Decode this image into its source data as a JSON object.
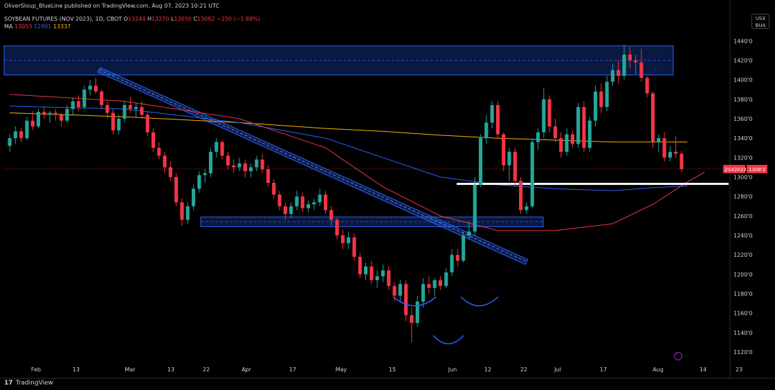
{
  "header": {
    "published": "OliverSloup_BlueLine published on TradingView.com, Aug 07, 2023 10:21 UTC"
  },
  "legend": {
    "symbol": "SOYBEAN FUTURES (NOV 2023), 1D, CBOT",
    "o_label": "O",
    "o_value": "13244",
    "h_label": "H",
    "h_value": "13270",
    "l_label": "L",
    "l_value": "13050",
    "c_label": "C",
    "c_value": "13082",
    "change": "−250 (−1.88%)",
    "ma_label": "MA",
    "ma1": "13053",
    "ma2": "12901",
    "ma3": "13337"
  },
  "badge": {
    "line1": "USX",
    "line2": "BUA"
  },
  "price_tag": {
    "symbol": "ZSX2023",
    "price": "1308'2"
  },
  "footer": {
    "brand": "TradingView",
    "logo": "17"
  },
  "colors": {
    "up": "#26a69a",
    "down": "#f23645",
    "ma_red": "#f23645",
    "ma_blue": "#2962ff",
    "ma_gold": "#ffb300",
    "zone": "#2962ff"
  },
  "chart_data": {
    "type": "candlestick",
    "y_axis_ticks": [
      1440,
      1420,
      1400,
      1380,
      1360,
      1340,
      1320,
      1300,
      1280,
      1260,
      1240,
      1220,
      1200,
      1180,
      1160,
      1140,
      1120
    ],
    "x_axis_labels": [
      "Feb",
      "13",
      "Mar",
      "13",
      "22",
      "Apr",
      "17",
      "May",
      "15",
      "Jun",
      "12",
      "22",
      "Jul",
      "17",
      "Aug",
      "14",
      "23"
    ],
    "ylim": [
      1108,
      1448
    ],
    "last_price": 1308.25,
    "support_line": 1293,
    "zones": [
      {
        "name": "top-zone",
        "low": 1405,
        "high": 1435
      },
      {
        "name": "bottom-zone",
        "low": 1249,
        "high": 1259
      }
    ],
    "candles": [
      {
        "o": 1332,
        "h": 1344,
        "l": 1326,
        "c": 1340
      },
      {
        "o": 1340,
        "h": 1352,
        "l": 1334,
        "c": 1347
      },
      {
        "o": 1347,
        "h": 1350,
        "l": 1336,
        "c": 1340
      },
      {
        "o": 1340,
        "h": 1362,
        "l": 1338,
        "c": 1358
      },
      {
        "o": 1358,
        "h": 1368,
        "l": 1348,
        "c": 1352
      },
      {
        "o": 1352,
        "h": 1370,
        "l": 1350,
        "c": 1367
      },
      {
        "o": 1367,
        "h": 1372,
        "l": 1360,
        "c": 1364
      },
      {
        "o": 1364,
        "h": 1368,
        "l": 1356,
        "c": 1366
      },
      {
        "o": 1366,
        "h": 1370,
        "l": 1358,
        "c": 1364
      },
      {
        "o": 1364,
        "h": 1366,
        "l": 1352,
        "c": 1358
      },
      {
        "o": 1358,
        "h": 1374,
        "l": 1356,
        "c": 1370
      },
      {
        "o": 1370,
        "h": 1382,
        "l": 1364,
        "c": 1378
      },
      {
        "o": 1378,
        "h": 1384,
        "l": 1368,
        "c": 1372
      },
      {
        "o": 1372,
        "h": 1394,
        "l": 1370,
        "c": 1390
      },
      {
        "o": 1390,
        "h": 1400,
        "l": 1384,
        "c": 1394
      },
      {
        "o": 1394,
        "h": 1402,
        "l": 1386,
        "c": 1388
      },
      {
        "o": 1388,
        "h": 1390,
        "l": 1370,
        "c": 1374
      },
      {
        "o": 1374,
        "h": 1378,
        "l": 1360,
        "c": 1366
      },
      {
        "o": 1366,
        "h": 1370,
        "l": 1344,
        "c": 1348
      },
      {
        "o": 1348,
        "h": 1364,
        "l": 1344,
        "c": 1360
      },
      {
        "o": 1360,
        "h": 1378,
        "l": 1356,
        "c": 1374
      },
      {
        "o": 1374,
        "h": 1382,
        "l": 1366,
        "c": 1370
      },
      {
        "o": 1370,
        "h": 1376,
        "l": 1362,
        "c": 1372
      },
      {
        "o": 1372,
        "h": 1378,
        "l": 1360,
        "c": 1364
      },
      {
        "o": 1364,
        "h": 1368,
        "l": 1342,
        "c": 1346
      },
      {
        "o": 1346,
        "h": 1350,
        "l": 1326,
        "c": 1330
      },
      {
        "o": 1330,
        "h": 1336,
        "l": 1318,
        "c": 1322
      },
      {
        "o": 1322,
        "h": 1326,
        "l": 1304,
        "c": 1310
      },
      {
        "o": 1310,
        "h": 1316,
        "l": 1296,
        "c": 1300
      },
      {
        "o": 1300,
        "h": 1304,
        "l": 1270,
        "c": 1274
      },
      {
        "o": 1274,
        "h": 1278,
        "l": 1250,
        "c": 1256
      },
      {
        "o": 1256,
        "h": 1274,
        "l": 1252,
        "c": 1270
      },
      {
        "o": 1270,
        "h": 1292,
        "l": 1266,
        "c": 1288
      },
      {
        "o": 1288,
        "h": 1306,
        "l": 1284,
        "c": 1302
      },
      {
        "o": 1302,
        "h": 1308,
        "l": 1294,
        "c": 1304
      },
      {
        "o": 1304,
        "h": 1330,
        "l": 1300,
        "c": 1326
      },
      {
        "o": 1326,
        "h": 1340,
        "l": 1320,
        "c": 1336
      },
      {
        "o": 1336,
        "h": 1338,
        "l": 1318,
        "c": 1322
      },
      {
        "o": 1322,
        "h": 1326,
        "l": 1308,
        "c": 1312
      },
      {
        "o": 1312,
        "h": 1318,
        "l": 1304,
        "c": 1310
      },
      {
        "o": 1310,
        "h": 1320,
        "l": 1306,
        "c": 1314
      },
      {
        "o": 1314,
        "h": 1318,
        "l": 1300,
        "c": 1306
      },
      {
        "o": 1306,
        "h": 1314,
        "l": 1300,
        "c": 1310
      },
      {
        "o": 1310,
        "h": 1322,
        "l": 1306,
        "c": 1318
      },
      {
        "o": 1318,
        "h": 1324,
        "l": 1304,
        "c": 1308
      },
      {
        "o": 1308,
        "h": 1312,
        "l": 1290,
        "c": 1294
      },
      {
        "o": 1294,
        "h": 1298,
        "l": 1278,
        "c": 1282
      },
      {
        "o": 1282,
        "h": 1286,
        "l": 1266,
        "c": 1270
      },
      {
        "o": 1270,
        "h": 1274,
        "l": 1256,
        "c": 1262
      },
      {
        "o": 1262,
        "h": 1274,
        "l": 1258,
        "c": 1270
      },
      {
        "o": 1270,
        "h": 1286,
        "l": 1266,
        "c": 1280
      },
      {
        "o": 1280,
        "h": 1284,
        "l": 1264,
        "c": 1268
      },
      {
        "o": 1268,
        "h": 1276,
        "l": 1264,
        "c": 1272
      },
      {
        "o": 1272,
        "h": 1278,
        "l": 1266,
        "c": 1274
      },
      {
        "o": 1274,
        "h": 1288,
        "l": 1270,
        "c": 1282
      },
      {
        "o": 1282,
        "h": 1286,
        "l": 1262,
        "c": 1266
      },
      {
        "o": 1266,
        "h": 1270,
        "l": 1250,
        "c": 1256
      },
      {
        "o": 1256,
        "h": 1258,
        "l": 1236,
        "c": 1240
      },
      {
        "o": 1240,
        "h": 1246,
        "l": 1226,
        "c": 1232
      },
      {
        "o": 1232,
        "h": 1244,
        "l": 1226,
        "c": 1238
      },
      {
        "o": 1238,
        "h": 1242,
        "l": 1214,
        "c": 1218
      },
      {
        "o": 1218,
        "h": 1222,
        "l": 1196,
        "c": 1200
      },
      {
        "o": 1200,
        "h": 1212,
        "l": 1194,
        "c": 1208
      },
      {
        "o": 1208,
        "h": 1214,
        "l": 1190,
        "c": 1194
      },
      {
        "o": 1194,
        "h": 1204,
        "l": 1186,
        "c": 1198
      },
      {
        "o": 1198,
        "h": 1210,
        "l": 1192,
        "c": 1204
      },
      {
        "o": 1204,
        "h": 1208,
        "l": 1184,
        "c": 1188
      },
      {
        "o": 1188,
        "h": 1192,
        "l": 1172,
        "c": 1178
      },
      {
        "o": 1178,
        "h": 1194,
        "l": 1172,
        "c": 1190
      },
      {
        "o": 1190,
        "h": 1194,
        "l": 1152,
        "c": 1158
      },
      {
        "o": 1158,
        "h": 1166,
        "l": 1130,
        "c": 1150
      },
      {
        "o": 1150,
        "h": 1178,
        "l": 1146,
        "c": 1172
      },
      {
        "o": 1172,
        "h": 1196,
        "l": 1166,
        "c": 1190
      },
      {
        "o": 1190,
        "h": 1198,
        "l": 1180,
        "c": 1186
      },
      {
        "o": 1186,
        "h": 1196,
        "l": 1178,
        "c": 1194
      },
      {
        "o": 1194,
        "h": 1198,
        "l": 1184,
        "c": 1188
      },
      {
        "o": 1188,
        "h": 1206,
        "l": 1186,
        "c": 1202
      },
      {
        "o": 1202,
        "h": 1226,
        "l": 1198,
        "c": 1220
      },
      {
        "o": 1220,
        "h": 1226,
        "l": 1208,
        "c": 1214
      },
      {
        "o": 1214,
        "h": 1244,
        "l": 1212,
        "c": 1240
      },
      {
        "o": 1240,
        "h": 1254,
        "l": 1236,
        "c": 1244
      },
      {
        "o": 1244,
        "h": 1300,
        "l": 1240,
        "c": 1292
      },
      {
        "o": 1292,
        "h": 1344,
        "l": 1290,
        "c": 1340
      },
      {
        "o": 1340,
        "h": 1364,
        "l": 1334,
        "c": 1356
      },
      {
        "o": 1356,
        "h": 1378,
        "l": 1350,
        "c": 1374
      },
      {
        "o": 1374,
        "h": 1378,
        "l": 1340,
        "c": 1344
      },
      {
        "o": 1344,
        "h": 1346,
        "l": 1306,
        "c": 1312
      },
      {
        "o": 1312,
        "h": 1330,
        "l": 1296,
        "c": 1326
      },
      {
        "o": 1326,
        "h": 1330,
        "l": 1290,
        "c": 1296
      },
      {
        "o": 1296,
        "h": 1300,
        "l": 1262,
        "c": 1266
      },
      {
        "o": 1266,
        "h": 1274,
        "l": 1262,
        "c": 1270
      },
      {
        "o": 1270,
        "h": 1340,
        "l": 1268,
        "c": 1336
      },
      {
        "o": 1336,
        "h": 1350,
        "l": 1328,
        "c": 1346
      },
      {
        "o": 1346,
        "h": 1392,
        "l": 1340,
        "c": 1380
      },
      {
        "o": 1380,
        "h": 1384,
        "l": 1346,
        "c": 1352
      },
      {
        "o": 1352,
        "h": 1360,
        "l": 1336,
        "c": 1340
      },
      {
        "o": 1340,
        "h": 1346,
        "l": 1320,
        "c": 1326
      },
      {
        "o": 1326,
        "h": 1350,
        "l": 1322,
        "c": 1344
      },
      {
        "o": 1344,
        "h": 1348,
        "l": 1330,
        "c": 1334
      },
      {
        "o": 1334,
        "h": 1376,
        "l": 1330,
        "c": 1372
      },
      {
        "o": 1372,
        "h": 1378,
        "l": 1326,
        "c": 1330
      },
      {
        "o": 1330,
        "h": 1362,
        "l": 1326,
        "c": 1358
      },
      {
        "o": 1358,
        "h": 1394,
        "l": 1352,
        "c": 1388
      },
      {
        "o": 1388,
        "h": 1396,
        "l": 1366,
        "c": 1372
      },
      {
        "o": 1372,
        "h": 1404,
        "l": 1368,
        "c": 1398
      },
      {
        "o": 1398,
        "h": 1416,
        "l": 1394,
        "c": 1410
      },
      {
        "o": 1410,
        "h": 1420,
        "l": 1396,
        "c": 1404
      },
      {
        "o": 1404,
        "h": 1436,
        "l": 1400,
        "c": 1426
      },
      {
        "o": 1426,
        "h": 1434,
        "l": 1412,
        "c": 1420
      },
      {
        "o": 1420,
        "h": 1426,
        "l": 1406,
        "c": 1418
      },
      {
        "o": 1418,
        "h": 1432,
        "l": 1398,
        "c": 1402
      },
      {
        "o": 1402,
        "h": 1404,
        "l": 1382,
        "c": 1386
      },
      {
        "o": 1386,
        "h": 1388,
        "l": 1330,
        "c": 1336
      },
      {
        "o": 1336,
        "h": 1344,
        "l": 1326,
        "c": 1340
      },
      {
        "o": 1340,
        "h": 1346,
        "l": 1316,
        "c": 1320
      },
      {
        "o": 1320,
        "h": 1332,
        "l": 1316,
        "c": 1326
      },
      {
        "o": 1326,
        "h": 1342,
        "l": 1320,
        "c": 1324
      },
      {
        "o": 1324,
        "h": 1327,
        "l": 1305,
        "c": 1308
      }
    ],
    "ma_red": [
      [
        0,
        1385
      ],
      [
        20,
        1378
      ],
      [
        40,
        1360
      ],
      [
        55,
        1330
      ],
      [
        65,
        1290
      ],
      [
        75,
        1260
      ],
      [
        85,
        1245
      ],
      [
        95,
        1245
      ],
      [
        105,
        1252
      ],
      [
        112,
        1272
      ],
      [
        118,
        1295
      ],
      [
        121,
        1305
      ]
    ],
    "ma_blue": [
      [
        0,
        1373
      ],
      [
        20,
        1370
      ],
      [
        40,
        1356
      ],
      [
        55,
        1340
      ],
      [
        65,
        1320
      ],
      [
        75,
        1300
      ],
      [
        85,
        1292
      ],
      [
        95,
        1288
      ],
      [
        105,
        1286
      ],
      [
        112,
        1289
      ],
      [
        118,
        1291
      ]
    ],
    "ma_gold": [
      [
        0,
        1366
      ],
      [
        20,
        1362
      ],
      [
        40,
        1356
      ],
      [
        55,
        1350
      ],
      [
        65,
        1347
      ],
      [
        75,
        1343
      ],
      [
        85,
        1340
      ],
      [
        95,
        1338
      ],
      [
        105,
        1336
      ],
      [
        112,
        1336
      ],
      [
        118,
        1336
      ]
    ]
  }
}
